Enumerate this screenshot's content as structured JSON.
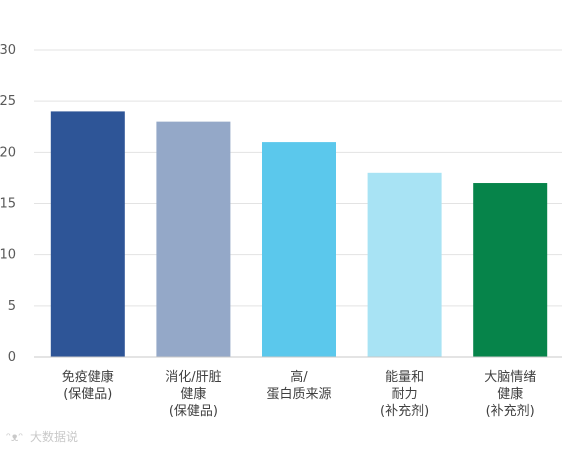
{
  "chart_data": {
    "type": "bar",
    "title": "",
    "xlabel": "",
    "ylabel": "",
    "ylim": [
      0,
      30
    ],
    "yticks": [
      0,
      5,
      10,
      15,
      20,
      25,
      30
    ],
    "grid": true,
    "legend": "none",
    "categories": [
      [
        "免疫健康",
        "(保健品)"
      ],
      [
        "消化/肝脏",
        "健康",
        "(保健品)"
      ],
      [
        "高/",
        "蛋白质来源"
      ],
      [
        "能量和",
        "耐力",
        "(补充剂)"
      ],
      [
        "大脑情绪",
        "健康",
        "(补充剂)"
      ]
    ],
    "values": [
      24,
      23,
      21,
      18,
      17
    ],
    "colors": [
      "#2e5597",
      "#94a8c8",
      "#5bc8ec",
      "#a8e3f4",
      "#06844a"
    ]
  },
  "watermark": {
    "text": "大数据说",
    "icon": "wechat-logo-icon"
  }
}
